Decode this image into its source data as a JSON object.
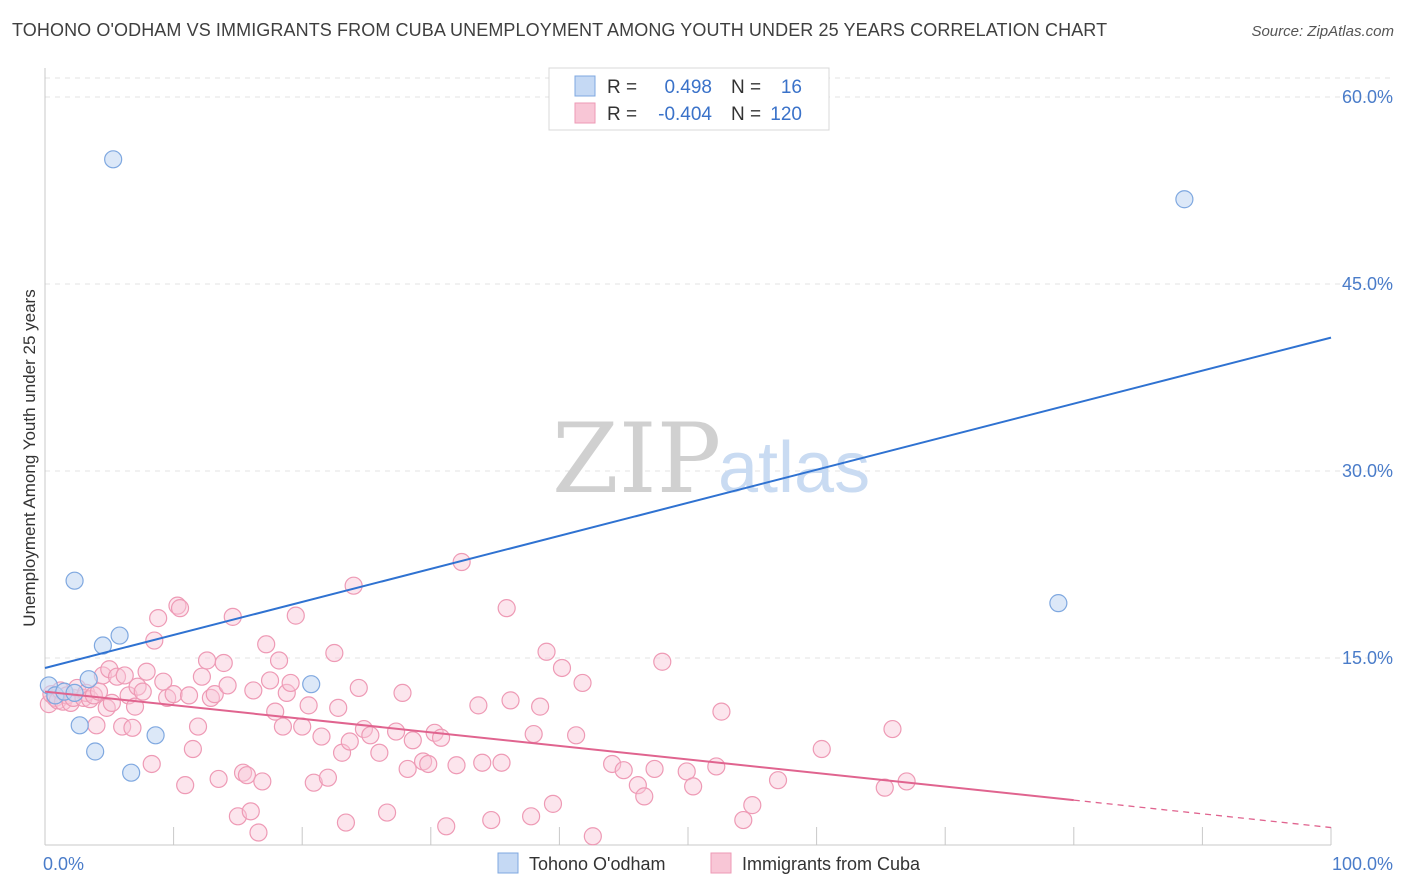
{
  "title": "TOHONO O'ODHAM VS IMMIGRANTS FROM CUBA UNEMPLOYMENT AMONG YOUTH UNDER 25 YEARS CORRELATION CHART",
  "source": "Source: ZipAtlas.com",
  "watermark": {
    "zip": "ZIP",
    "atlas": "atlas"
  },
  "legend_top": {
    "rows": [
      {
        "r_label": "R =",
        "r_value": "0.498",
        "n_label": "N =",
        "n_value": "16"
      },
      {
        "r_label": "R =",
        "r_value": "-0.404",
        "n_label": "N =",
        "n_value": "120"
      }
    ]
  },
  "colors": {
    "blue_fill": "#c5d9f4",
    "blue_stroke": "#7fa8e0",
    "blue_line": "#2f72d1",
    "pink_fill": "#f8c6d6",
    "pink_stroke": "#ee9ab5",
    "pink_line": "#e0648f",
    "axis_text": "#4a7cc9",
    "grid": "#e3e3e3"
  },
  "chart_data": {
    "type": "scatter",
    "title": "TOHONO O'ODHAM VS IMMIGRANTS FROM CUBA UNEMPLOYMENT AMONG YOUTH UNDER 25 YEARS CORRELATION CHART",
    "xlabel": "",
    "ylabel": "Unemployment Among Youth under 25 years",
    "xlim": [
      0,
      100
    ],
    "ylim": [
      0,
      60
    ],
    "x_tick_labels": [
      "0.0%",
      "100.0%"
    ],
    "y_ticks": [
      15,
      30,
      45,
      60
    ],
    "y_tick_labels": [
      "15.0%",
      "30.0%",
      "45.0%",
      "60.0%"
    ],
    "grid": true,
    "legend_position": "bottom",
    "series": [
      {
        "name": "Tohono O'odham",
        "color": "#7fa8e0",
        "trend": {
          "x": [
            0,
            100
          ],
          "y": [
            14.2,
            40.7
          ]
        },
        "points": [
          [
            0.3,
            12.8
          ],
          [
            0.8,
            12.0
          ],
          [
            1.5,
            12.3
          ],
          [
            2.3,
            12.2
          ],
          [
            2.3,
            21.2
          ],
          [
            2.7,
            9.6
          ],
          [
            3.4,
            13.3
          ],
          [
            3.9,
            7.5
          ],
          [
            4.5,
            16.0
          ],
          [
            5.3,
            55.0
          ],
          [
            5.8,
            16.8
          ],
          [
            6.7,
            5.8
          ],
          [
            8.6,
            8.8
          ],
          [
            20.7,
            12.9
          ],
          [
            78.8,
            19.4
          ],
          [
            88.6,
            51.8
          ]
        ]
      },
      {
        "name": "Immigrants from Cuba",
        "color": "#ee9ab5",
        "trend": {
          "x": [
            0,
            80
          ],
          "y": [
            12.3,
            3.6
          ]
        },
        "trend_dashed": {
          "x": [
            80,
            100
          ],
          "y": [
            3.6,
            1.4
          ]
        },
        "points": [
          [
            0.3,
            11.3
          ],
          [
            0.5,
            12.1
          ],
          [
            0.8,
            11.8
          ],
          [
            1.0,
            11.6
          ],
          [
            1.2,
            12.4
          ],
          [
            1.4,
            11.5
          ],
          [
            1.7,
            12.0
          ],
          [
            2.0,
            11.4
          ],
          [
            2.2,
            11.8
          ],
          [
            2.5,
            12.6
          ],
          [
            3.0,
            11.8
          ],
          [
            3.2,
            12.2
          ],
          [
            3.5,
            11.7
          ],
          [
            3.8,
            12.0
          ],
          [
            4.0,
            9.6
          ],
          [
            4.2,
            12.3
          ],
          [
            4.5,
            13.6
          ],
          [
            4.8,
            11.0
          ],
          [
            5.0,
            14.1
          ],
          [
            5.2,
            11.4
          ],
          [
            5.6,
            13.5
          ],
          [
            6.0,
            9.5
          ],
          [
            6.2,
            13.6
          ],
          [
            6.5,
            12.0
          ],
          [
            6.8,
            9.4
          ],
          [
            7.0,
            11.1
          ],
          [
            7.2,
            12.7
          ],
          [
            7.6,
            12.3
          ],
          [
            7.9,
            13.9
          ],
          [
            8.3,
            6.5
          ],
          [
            8.5,
            16.4
          ],
          [
            8.8,
            18.2
          ],
          [
            9.2,
            13.1
          ],
          [
            9.5,
            11.8
          ],
          [
            10.0,
            12.1
          ],
          [
            10.3,
            19.2
          ],
          [
            10.5,
            19.0
          ],
          [
            10.9,
            4.8
          ],
          [
            11.2,
            12.0
          ],
          [
            11.5,
            7.7
          ],
          [
            11.9,
            9.5
          ],
          [
            12.2,
            13.5
          ],
          [
            12.6,
            14.8
          ],
          [
            12.9,
            11.8
          ],
          [
            13.2,
            12.1
          ],
          [
            13.5,
            5.3
          ],
          [
            13.9,
            14.6
          ],
          [
            14.2,
            12.8
          ],
          [
            14.6,
            18.3
          ],
          [
            15.0,
            2.3
          ],
          [
            15.4,
            5.8
          ],
          [
            15.7,
            5.6
          ],
          [
            16.0,
            2.7
          ],
          [
            16.2,
            12.4
          ],
          [
            16.6,
            1.0
          ],
          [
            16.9,
            5.1
          ],
          [
            17.2,
            16.1
          ],
          [
            17.5,
            13.2
          ],
          [
            17.9,
            10.7
          ],
          [
            18.2,
            14.8
          ],
          [
            18.5,
            9.5
          ],
          [
            18.8,
            12.2
          ],
          [
            19.1,
            13.0
          ],
          [
            19.5,
            18.4
          ],
          [
            20.0,
            9.5
          ],
          [
            20.5,
            11.2
          ],
          [
            20.9,
            5.0
          ],
          [
            21.5,
            8.7
          ],
          [
            22.0,
            5.4
          ],
          [
            22.5,
            15.4
          ],
          [
            22.8,
            11.0
          ],
          [
            23.1,
            7.4
          ],
          [
            23.4,
            1.8
          ],
          [
            23.7,
            8.3
          ],
          [
            24.0,
            20.8
          ],
          [
            24.4,
            12.6
          ],
          [
            24.8,
            9.3
          ],
          [
            25.3,
            8.8
          ],
          [
            26.0,
            7.4
          ],
          [
            26.6,
            2.6
          ],
          [
            27.3,
            9.1
          ],
          [
            27.8,
            12.2
          ],
          [
            28.2,
            6.1
          ],
          [
            28.6,
            8.4
          ],
          [
            29.4,
            6.7
          ],
          [
            29.8,
            6.5
          ],
          [
            30.3,
            9.0
          ],
          [
            30.8,
            8.6
          ],
          [
            31.2,
            1.5
          ],
          [
            32.0,
            6.4
          ],
          [
            32.4,
            22.7
          ],
          [
            33.7,
            11.2
          ],
          [
            34.0,
            6.6
          ],
          [
            34.7,
            2.0
          ],
          [
            35.5,
            6.6
          ],
          [
            35.9,
            19.0
          ],
          [
            36.2,
            11.6
          ],
          [
            37.8,
            2.3
          ],
          [
            38.0,
            8.9
          ],
          [
            38.5,
            11.1
          ],
          [
            39.0,
            15.5
          ],
          [
            39.5,
            3.3
          ],
          [
            40.2,
            14.2
          ],
          [
            41.3,
            8.8
          ],
          [
            41.8,
            13.0
          ],
          [
            42.6,
            0.7
          ],
          [
            44.1,
            6.5
          ],
          [
            45.0,
            6.0
          ],
          [
            46.1,
            4.8
          ],
          [
            46.6,
            3.9
          ],
          [
            47.4,
            6.1
          ],
          [
            48.0,
            14.7
          ],
          [
            49.9,
            5.9
          ],
          [
            50.4,
            4.7
          ],
          [
            52.2,
            6.3
          ],
          [
            52.6,
            10.7
          ],
          [
            54.3,
            2.0
          ],
          [
            55.0,
            3.2
          ],
          [
            57.0,
            5.2
          ],
          [
            60.4,
            7.7
          ],
          [
            65.3,
            4.6
          ],
          [
            65.9,
            9.3
          ],
          [
            67.0,
            5.1
          ]
        ]
      }
    ]
  }
}
